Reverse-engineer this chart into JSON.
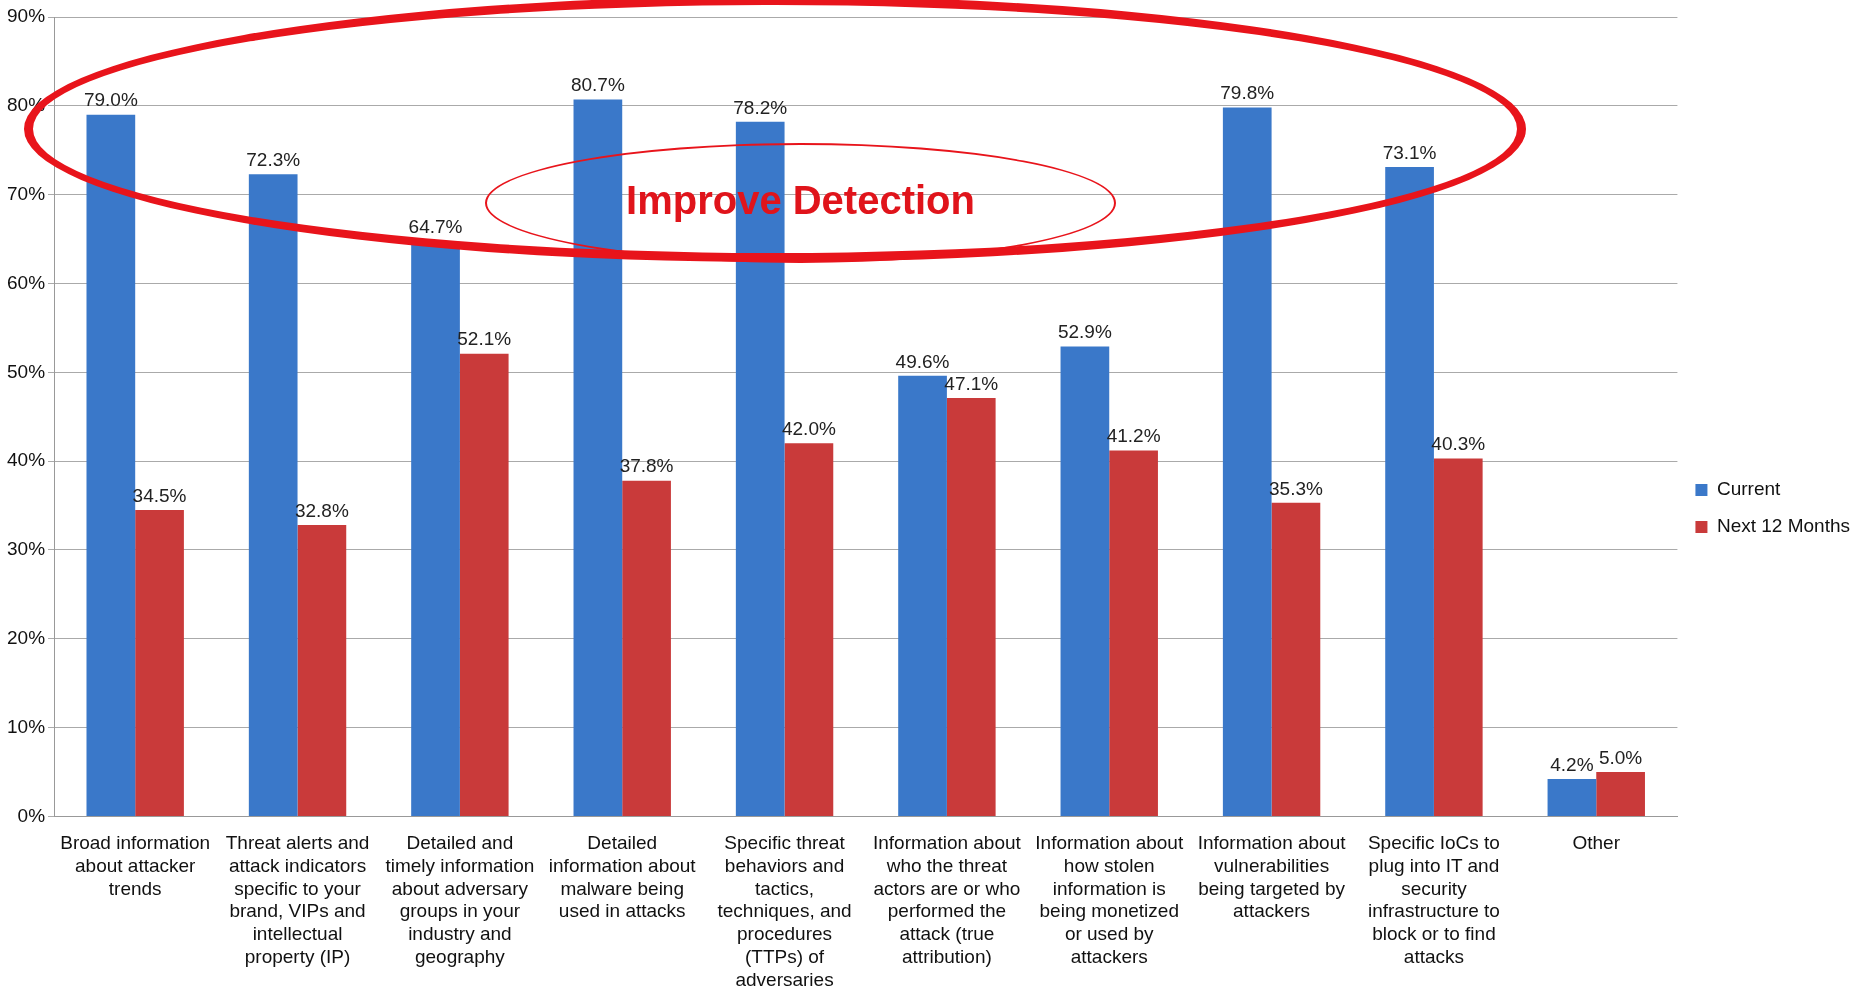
{
  "chart_data": {
    "type": "bar",
    "categories": [
      "Broad information about attacker trends",
      "Threat alerts and attack indicators specific to your brand, VIPs and intellectual property (IP)",
      "Detailed and timely information about adversary groups in your industry and geography",
      "Detailed information about malware being used in attacks",
      "Specific threat behaviors and tactics, techniques, and procedures (TTPs) of adversaries",
      "Information about who the threat actors are or who performed the attack (true attribution)",
      "Information about how stolen information is being monetized or used by attackers",
      "Information about vulnerabilities being targeted by attackers",
      "Specific IoCs to plug into IT and security infrastructure to block or to find attacks",
      "Other"
    ],
    "series": [
      {
        "name": "Current",
        "color": "#3a78c9",
        "values": [
          79.0,
          72.3,
          64.7,
          80.7,
          78.2,
          49.6,
          52.9,
          79.8,
          73.1,
          4.2
        ],
        "value_labels": [
          "79.0%",
          "72.3%",
          "64.7%",
          "80.7%",
          "78.2%",
          "49.6%",
          "52.9%",
          "79.8%",
          "73.1%",
          "4.2%"
        ]
      },
      {
        "name": "Next 12 Months",
        "color": "#c93a3a",
        "values": [
          34.5,
          32.8,
          52.1,
          37.8,
          42.0,
          47.1,
          41.2,
          35.3,
          40.3,
          5.0
        ],
        "value_labels": [
          "34.5%",
          "32.8%",
          "52.1%",
          "37.8%",
          "42.0%",
          "47.1%",
          "41.2%",
          "35.3%",
          "40.3%",
          "5.0%"
        ]
      }
    ],
    "ylim": [
      0,
      90
    ],
    "yticks": [
      {
        "value": 0,
        "label": "0%"
      },
      {
        "value": 10,
        "label": "10%"
      },
      {
        "value": 20,
        "label": "20%"
      },
      {
        "value": 30,
        "label": "30%"
      },
      {
        "value": 40,
        "label": "40%"
      },
      {
        "value": 50,
        "label": "50%"
      },
      {
        "value": 60,
        "label": "60%"
      },
      {
        "value": 70,
        "label": "70%"
      },
      {
        "value": 80,
        "label": "80%"
      },
      {
        "value": 90,
        "label": "90%"
      }
    ],
    "grid": "y",
    "legend": "right",
    "annotations": [
      "Improve Detection"
    ]
  }
}
